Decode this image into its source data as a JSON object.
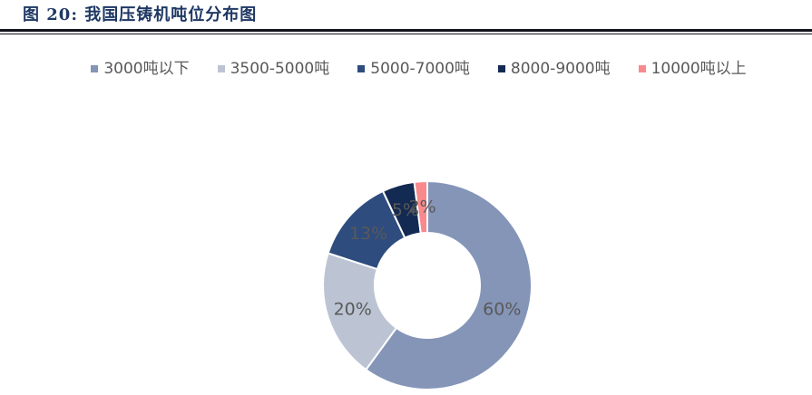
{
  "figure": {
    "title": "图 20: 我国压铸机吨位分布图",
    "title_color": "#1f3864",
    "rule_color": "#14141e"
  },
  "chart_data": {
    "type": "pie",
    "subtype": "donut",
    "title": "我国压铸机吨位分布图",
    "categories": [
      "3000吨以下",
      "3500-5000吨",
      "5000-7000吨",
      "8000-9000吨",
      "10000吨以上"
    ],
    "values": [
      60,
      20,
      13,
      5,
      2
    ],
    "data_labels": [
      "60%",
      "20%",
      "13%",
      "5%",
      "2%"
    ],
    "colors": [
      "#8595B8",
      "#BCC4D4",
      "#2E4C7E",
      "#132A52",
      "#F8898C"
    ],
    "label_color": "#595959",
    "legend_position": "top",
    "legend_text_color": "#595959",
    "start_angle_deg": 0,
    "direction": "clockwise",
    "donut_hole_ratio": 0.5,
    "slice_gap_color": "#ffffff"
  }
}
